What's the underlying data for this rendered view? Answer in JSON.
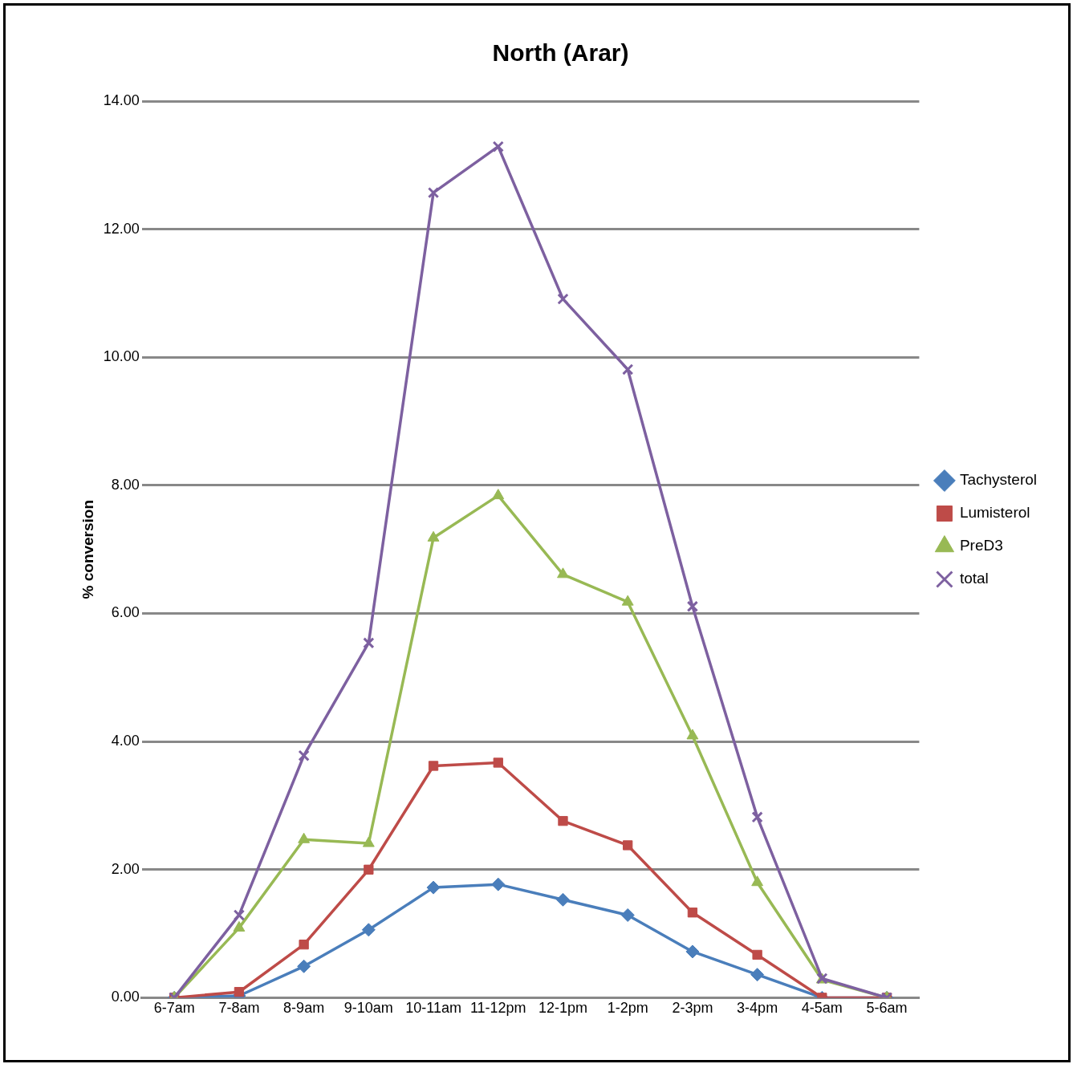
{
  "chart_data": {
    "type": "line",
    "title": "North (Arar)",
    "ylabel": "% conversion",
    "categories": [
      "6-7am",
      "7-8am",
      "8-9am",
      "9-10am",
      "10-11am",
      "11-12pm",
      "12-1pm",
      "1-2pm",
      "2-3pm",
      "3-4pm",
      "4-5am",
      "5-6am"
    ],
    "series": [
      {
        "name": "Tachysterol",
        "color": "#4a7ebb",
        "marker": "diamond",
        "values": [
          0,
          0.03,
          0.49,
          1.06,
          1.72,
          1.77,
          1.53,
          1.29,
          0.72,
          0.36,
          0,
          0
        ]
      },
      {
        "name": "Lumisterol",
        "color": "#be4b48",
        "marker": "square",
        "values": [
          0,
          0.09,
          0.83,
          2.0,
          3.62,
          3.67,
          2.76,
          2.38,
          1.33,
          0.67,
          0,
          0
        ]
      },
      {
        "name": "PreD3",
        "color": "#98b954",
        "marker": "triangle",
        "values": [
          0,
          1.09,
          2.47,
          2.41,
          7.18,
          7.84,
          6.61,
          6.18,
          4.09,
          1.8,
          0.28,
          0
        ]
      },
      {
        "name": "total",
        "color": "#7d60a0",
        "marker": "cross",
        "values": [
          0,
          1.29,
          3.78,
          5.54,
          12.57,
          13.29,
          10.91,
          9.81,
          6.11,
          2.82,
          0.3,
          0
        ]
      }
    ],
    "ylim": [
      0,
      14
    ],
    "yticks": [
      {
        "value": 0,
        "label": "0.00"
      },
      {
        "value": 2,
        "label": "2.00"
      },
      {
        "value": 4,
        "label": "4.00"
      },
      {
        "value": 6,
        "label": "6.00"
      },
      {
        "value": 8,
        "label": "8.00"
      },
      {
        "value": 10,
        "label": "10.00"
      },
      {
        "value": 12,
        "label": "12.00"
      },
      {
        "value": 14,
        "label": "14.00"
      }
    ],
    "grid": "y",
    "legend": "right",
    "line_style": "solid"
  }
}
